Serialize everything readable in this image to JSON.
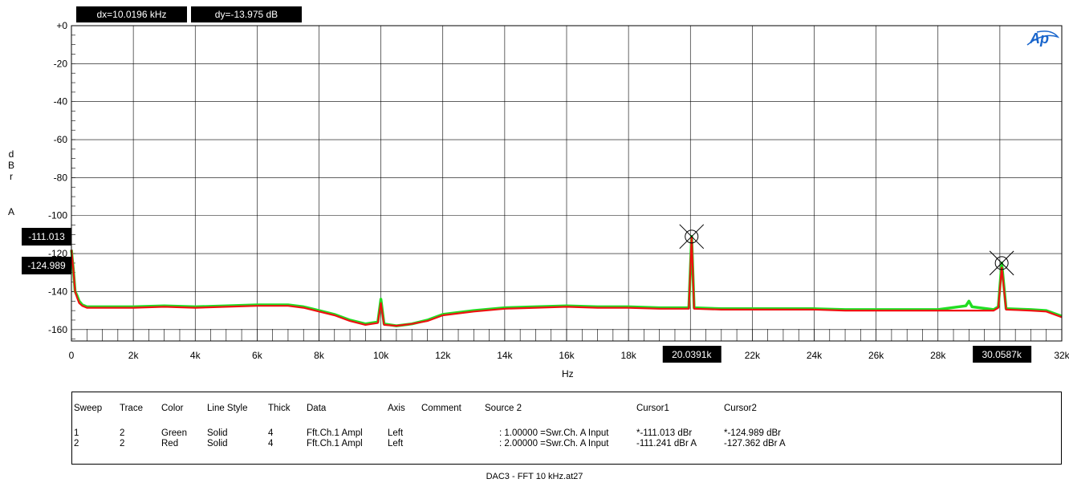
{
  "readouts": {
    "dx": "dx=10.0196 kHz",
    "dy": "dy=-13.975  dB"
  },
  "logo": "Ap",
  "y_axis_label": [
    "d",
    "B",
    "r",
    "A"
  ],
  "x_axis_label": "Hz",
  "caption": "DAC3 - FFT 10 kHz.at27",
  "colors": {
    "green": "#22dd22",
    "red": "#ee1111",
    "grid": "#000000",
    "logo": "#1a66cc"
  },
  "chart_data": {
    "type": "line",
    "xlabel": "Hz",
    "ylabel": "dBr A",
    "xlim": [
      0,
      32000
    ],
    "ylim": [
      -166,
      0
    ],
    "x_ticks": [
      0,
      2000,
      4000,
      6000,
      8000,
      10000,
      12000,
      14000,
      16000,
      18000,
      22000,
      24000,
      26000,
      28000,
      32000
    ],
    "x_tick_labels": [
      "0",
      "2k",
      "4k",
      "6k",
      "8k",
      "10k",
      "12k",
      "14k",
      "16k",
      "18k",
      "22k",
      "24k",
      "26k",
      "28k",
      "32k"
    ],
    "y_ticks": [
      0,
      -20,
      -40,
      -60,
      -80,
      -100,
      -120,
      -140,
      -160
    ],
    "y_tick_labels": [
      "+0",
      "-20",
      "-40",
      "-60",
      "-80",
      "-100",
      "-120",
      "-140",
      "-160"
    ],
    "grid": true,
    "series": [
      {
        "name": "Green",
        "x": [
          0,
          60,
          120,
          180,
          250,
          350,
          500,
          1000,
          2000,
          3000,
          4000,
          5000,
          6000,
          7000,
          7500,
          8000,
          8500,
          9000,
          9500,
          9900,
          10000,
          10100,
          10500,
          11000,
          11500,
          12000,
          13000,
          14000,
          15000,
          16000,
          17000,
          18000,
          19000,
          19950,
          20040,
          20120,
          21000,
          22000,
          23000,
          24000,
          25000,
          26000,
          27000,
          28000,
          28900,
          29000,
          29100,
          29800,
          29950,
          30060,
          30200,
          31000,
          31500,
          32000
        ],
        "y": [
          -118,
          -128,
          -140,
          -142,
          -145,
          -147,
          -148,
          -148,
          -148,
          -147.5,
          -148,
          -147.5,
          -147,
          -147,
          -148,
          -150,
          -152,
          -155,
          -157,
          -156,
          -144,
          -157,
          -158,
          -157,
          -155,
          -152,
          -150,
          -148.5,
          -148,
          -147.5,
          -148,
          -148,
          -148.5,
          -148.5,
          -111,
          -148.5,
          -149,
          -149,
          -149,
          -149,
          -149.5,
          -149.5,
          -149.5,
          -149.5,
          -147.5,
          -145,
          -148,
          -149.5,
          -148,
          -125,
          -149,
          -149.5,
          -150,
          -153
        ]
      },
      {
        "name": "Red",
        "x": [
          0,
          60,
          120,
          180,
          250,
          350,
          500,
          1000,
          2000,
          3000,
          4000,
          5000,
          6000,
          7000,
          7500,
          8000,
          8500,
          9000,
          9500,
          9900,
          10000,
          10100,
          10500,
          11000,
          11500,
          12000,
          13000,
          14000,
          15000,
          16000,
          17000,
          18000,
          19000,
          19950,
          20040,
          20120,
          21000,
          22000,
          23000,
          24000,
          25000,
          26000,
          27000,
          28000,
          29000,
          29800,
          29950,
          30060,
          30200,
          31000,
          31500,
          32000
        ],
        "y": [
          -118,
          -128,
          -140,
          -143,
          -146,
          -147.5,
          -148.5,
          -148.5,
          -148.5,
          -148,
          -148.5,
          -148,
          -147.5,
          -147.5,
          -148.5,
          -150.5,
          -152.5,
          -155.5,
          -157.5,
          -156.5,
          -146,
          -157.5,
          -158,
          -157,
          -155.5,
          -152.5,
          -150.5,
          -149,
          -148.5,
          -148,
          -148.5,
          -148.5,
          -149,
          -149,
          -111.2,
          -149,
          -149.5,
          -149.5,
          -149.5,
          -149.5,
          -150,
          -150,
          -150,
          -150,
          -150,
          -150,
          -148.5,
          -127.4,
          -149.5,
          -150,
          -150.5,
          -153.5
        ]
      }
    ],
    "cursor_x_labels": [
      "20.0391k",
      "30.0587k"
    ],
    "cursor_y_labels": [
      "-111.013",
      "-124.989"
    ],
    "cursor_markers": [
      {
        "x": 20039.1,
        "y": -111.013
      },
      {
        "x": 30058.7,
        "y": -124.989
      }
    ]
  },
  "legend": {
    "headers": [
      "Sweep",
      "Trace",
      "Color",
      "Line Style",
      "Thick",
      "Data",
      "Axis",
      "Comment",
      "Source 2",
      "Cursor1",
      "Cursor2"
    ],
    "rows": [
      [
        "1",
        "2",
        "Green",
        "Solid",
        "4",
        "Fft.Ch.1 Ampl",
        "Left",
        "",
        ": 1.00000  =Swr.Ch. A Input",
        "*-111.013 dBr",
        "*-124.989 dBr"
      ],
      [
        "2",
        "2",
        "Red",
        "Solid",
        "4",
        "Fft.Ch.1 Ampl",
        "Left",
        "",
        ": 2.00000  =Swr.Ch. A Input",
        "-111.241 dBr A",
        "-127.362 dBr A"
      ]
    ]
  }
}
